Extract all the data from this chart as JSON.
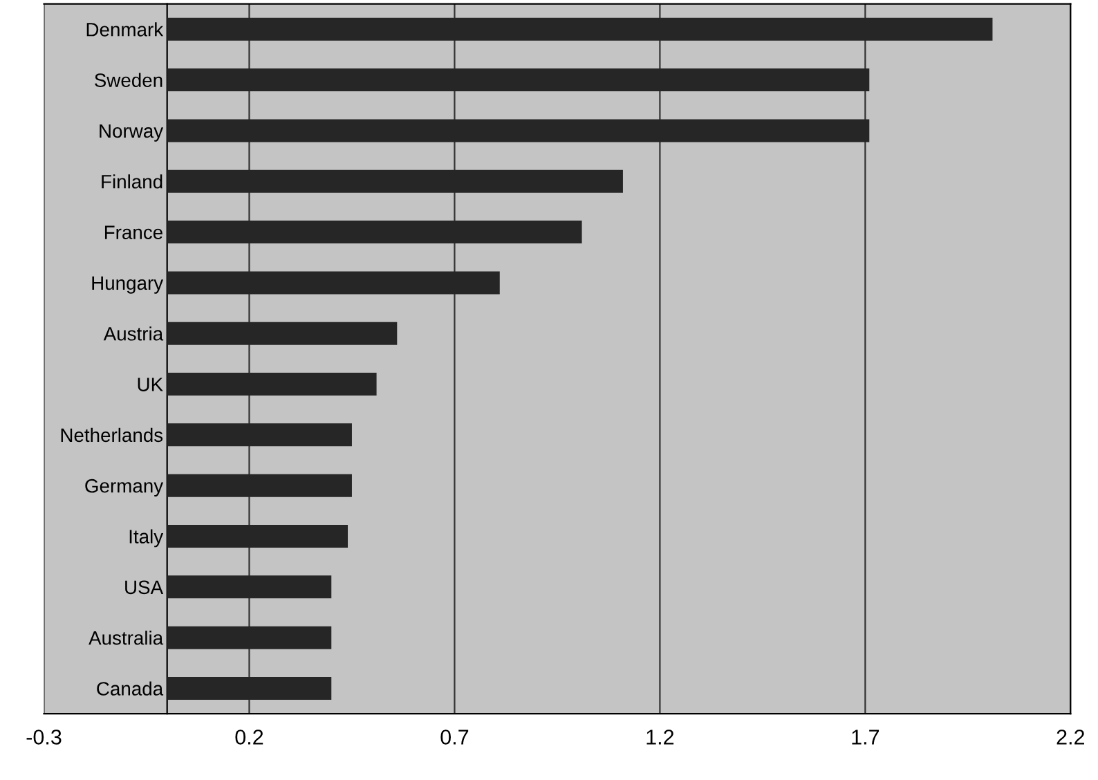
{
  "chart_data": {
    "type": "bar",
    "orientation": "horizontal",
    "categories": [
      "Denmark",
      "Sweden",
      "Norway",
      "Finland",
      "France",
      "Hungary",
      "Austria",
      "UK",
      "Netherlands",
      "Germany",
      "Italy",
      "USA",
      "Australia",
      "Canada"
    ],
    "values": [
      2.01,
      1.71,
      1.71,
      1.11,
      1.01,
      0.81,
      0.56,
      0.51,
      0.45,
      0.45,
      0.44,
      0.4,
      0.4,
      0.4
    ],
    "color": "#262626",
    "xlim": [
      -0.3,
      2.2
    ],
    "xticks": [
      -0.3,
      0.2,
      0.7,
      1.2,
      1.7,
      2.2
    ],
    "grid": "x"
  }
}
